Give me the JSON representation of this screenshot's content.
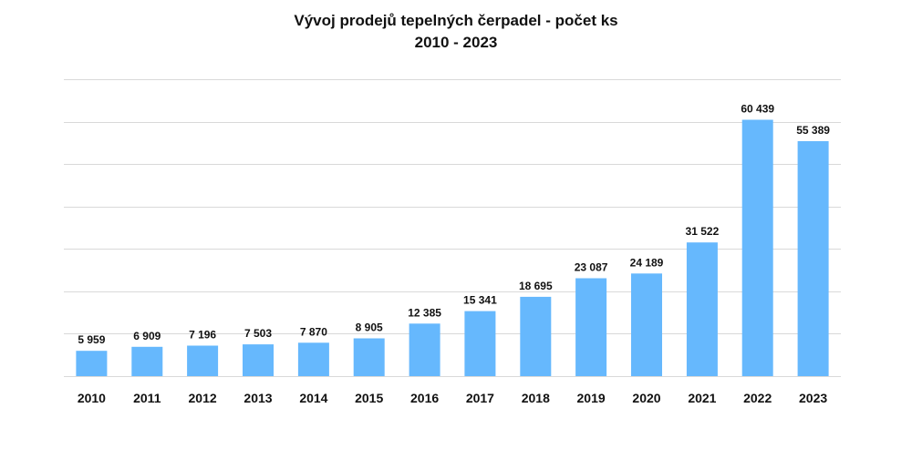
{
  "title_line1": "Vývoj prodejů tepelných čerpadel - počet ks",
  "title_line2": "2010 - 2023",
  "chart_data": {
    "type": "bar",
    "title": "Vývoj prodejů tepelných čerpadel - počet ks",
    "subtitle": "2010 - 2023",
    "categories": [
      "2010",
      "2011",
      "2012",
      "2013",
      "2014",
      "2015",
      "2016",
      "2017",
      "2018",
      "2019",
      "2020",
      "2021",
      "2022",
      "2023"
    ],
    "values": [
      5959,
      6909,
      7196,
      7503,
      7870,
      8905,
      12385,
      15341,
      18695,
      23087,
      24189,
      31522,
      60439,
      55389
    ],
    "value_labels": [
      "5 959",
      "6 909",
      "7 196",
      "7 503",
      "7 870",
      "8 905",
      "12 385",
      "15 341",
      "18 695",
      "23 087",
      "24 189",
      "31 522",
      "60 439",
      "55 389"
    ],
    "xlabel": "",
    "ylabel": "",
    "ylim": [
      0,
      70000
    ],
    "grid": true,
    "y_tick_labels_shown": false,
    "legend": false,
    "bar_color": "#66b8fd"
  }
}
